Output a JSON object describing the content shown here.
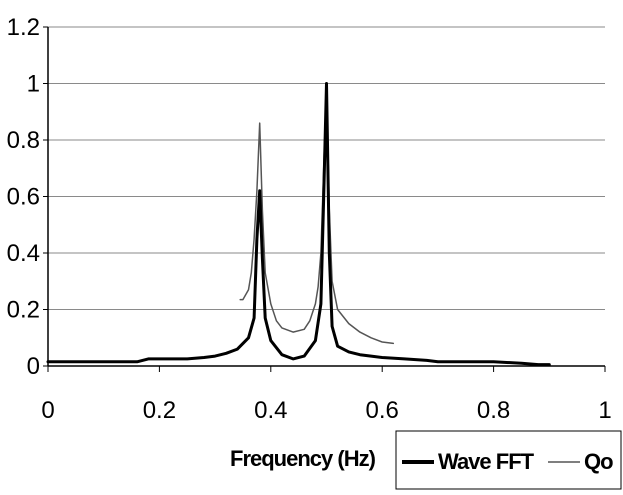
{
  "chart_data": {
    "type": "line",
    "title": "",
    "xlabel": "Frequency (Hz)",
    "ylabel": "",
    "xlim": [
      0,
      1
    ],
    "ylim": [
      0,
      1.2
    ],
    "x_ticks": [
      "0",
      "0.2",
      "0.4",
      "0.6",
      "0.8",
      "1"
    ],
    "y_ticks": [
      "0",
      "0.2",
      "0.4",
      "0.6",
      "0.8",
      "1",
      "1.2"
    ],
    "grid": "horizontal",
    "legend_placement": "bottom-right",
    "series": [
      {
        "name": "Wave FFT",
        "color": "#000000",
        "style": "thick",
        "x": [
          0,
          0.05,
          0.1,
          0.16,
          0.18,
          0.22,
          0.25,
          0.28,
          0.3,
          0.32,
          0.34,
          0.36,
          0.37,
          0.375,
          0.38,
          0.385,
          0.39,
          0.4,
          0.42,
          0.44,
          0.46,
          0.48,
          0.49,
          0.495,
          0.5,
          0.505,
          0.51,
          0.52,
          0.54,
          0.56,
          0.58,
          0.6,
          0.64,
          0.68,
          0.7,
          0.74,
          0.8,
          0.85,
          0.88,
          0.9
        ],
        "y": [
          0.015,
          0.015,
          0.015,
          0.015,
          0.025,
          0.025,
          0.025,
          0.03,
          0.035,
          0.045,
          0.06,
          0.1,
          0.17,
          0.45,
          0.62,
          0.38,
          0.17,
          0.09,
          0.04,
          0.025,
          0.035,
          0.09,
          0.22,
          0.6,
          1.0,
          0.4,
          0.14,
          0.07,
          0.05,
          0.04,
          0.035,
          0.03,
          0.025,
          0.02,
          0.015,
          0.015,
          0.015,
          0.01,
          0.005,
          0.005
        ]
      },
      {
        "name": "Qo",
        "color": "#555555",
        "style": "thin",
        "x": [
          0.345,
          0.35,
          0.36,
          0.365,
          0.37,
          0.375,
          0.38,
          0.385,
          0.39,
          0.4,
          0.41,
          0.42,
          0.44,
          0.46,
          0.47,
          0.48,
          0.485,
          0.49,
          0.495,
          0.5,
          0.505,
          0.51,
          0.52,
          0.54,
          0.56,
          0.58,
          0.6,
          0.62
        ],
        "y": [
          0.235,
          0.235,
          0.27,
          0.33,
          0.45,
          0.62,
          0.86,
          0.55,
          0.33,
          0.22,
          0.16,
          0.135,
          0.12,
          0.13,
          0.16,
          0.22,
          0.28,
          0.4,
          0.7,
          1.0,
          0.55,
          0.3,
          0.2,
          0.15,
          0.12,
          0.1,
          0.085,
          0.08
        ]
      }
    ]
  }
}
